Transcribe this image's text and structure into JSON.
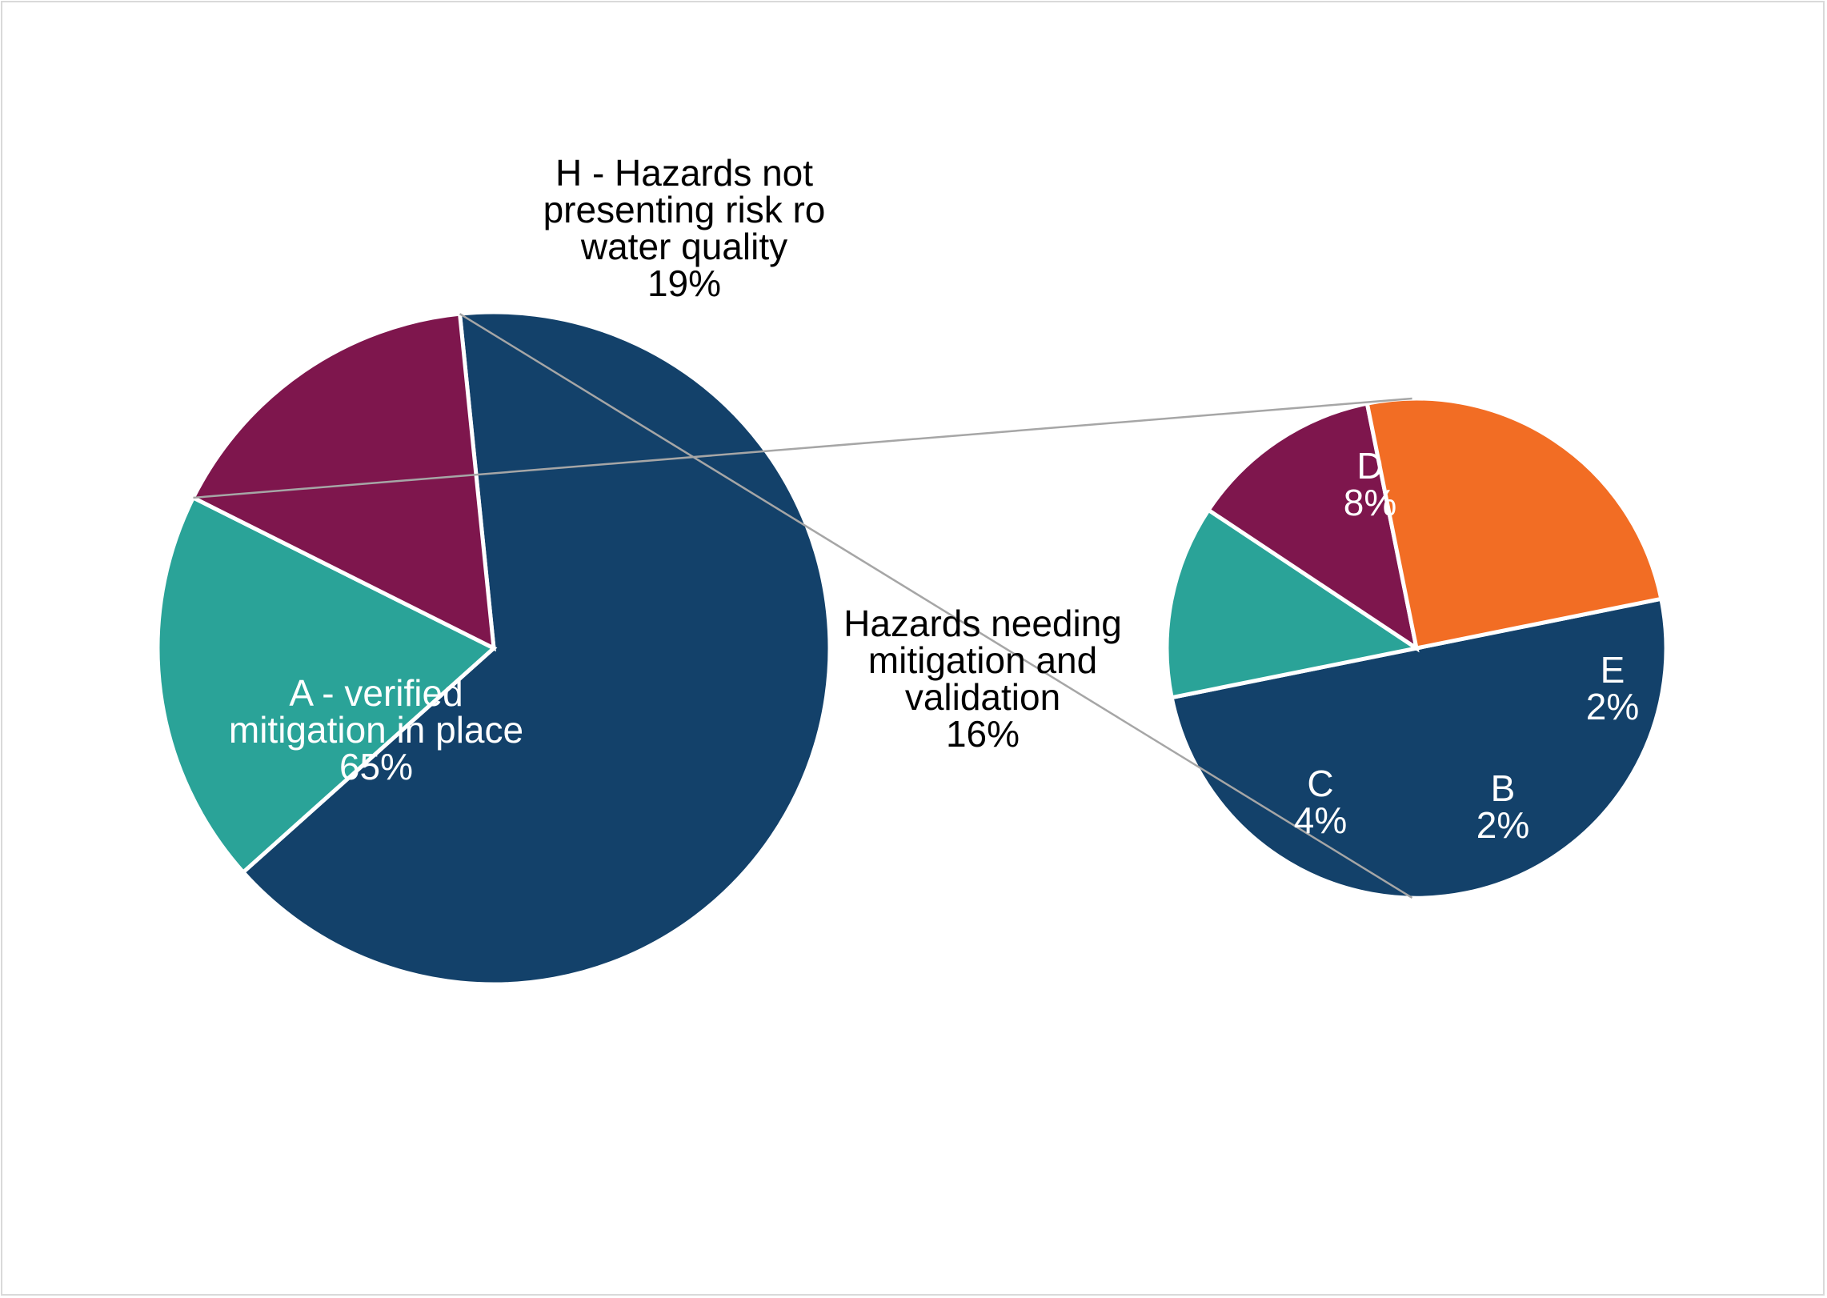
{
  "chart_data": {
    "type": "pie",
    "subtype": "pie-of-pie",
    "main_pie": {
      "slices": [
        {
          "label_lines": [
            "A - verified",
            "mitigation in place"
          ],
          "value_label": "65%",
          "value": 65,
          "color": "#13416a",
          "label_color": "#ffffff"
        },
        {
          "label_lines": [
            "H - Hazards not",
            "presenting risk ro",
            "water quality"
          ],
          "value_label": "19%",
          "value": 19,
          "color": "#2aa398",
          "label_color": "#000000"
        },
        {
          "label_lines": [
            "Hazards needing",
            "mitigation and",
            "validation"
          ],
          "value_label": "16%",
          "value": 16,
          "color": "#7e164d",
          "label_color": "#000000"
        }
      ]
    },
    "secondary_pie": {
      "slices": [
        {
          "label_lines": [
            "D"
          ],
          "value_label": "8%",
          "value": 8,
          "color": "#13416a",
          "label_color": "#ffffff"
        },
        {
          "label_lines": [
            "E"
          ],
          "value_label": "2%",
          "value": 2,
          "color": "#2aa398",
          "label_color": "#ffffff"
        },
        {
          "label_lines": [
            "B"
          ],
          "value_label": "2%",
          "value": 2,
          "color": "#7e164d",
          "label_color": "#ffffff"
        },
        {
          "label_lines": [
            "C"
          ],
          "value_label": "4%",
          "value": 4,
          "color": "#f26d24",
          "label_color": "#ffffff"
        }
      ]
    },
    "connector_color": "#a6a6a6",
    "legend": "none"
  }
}
